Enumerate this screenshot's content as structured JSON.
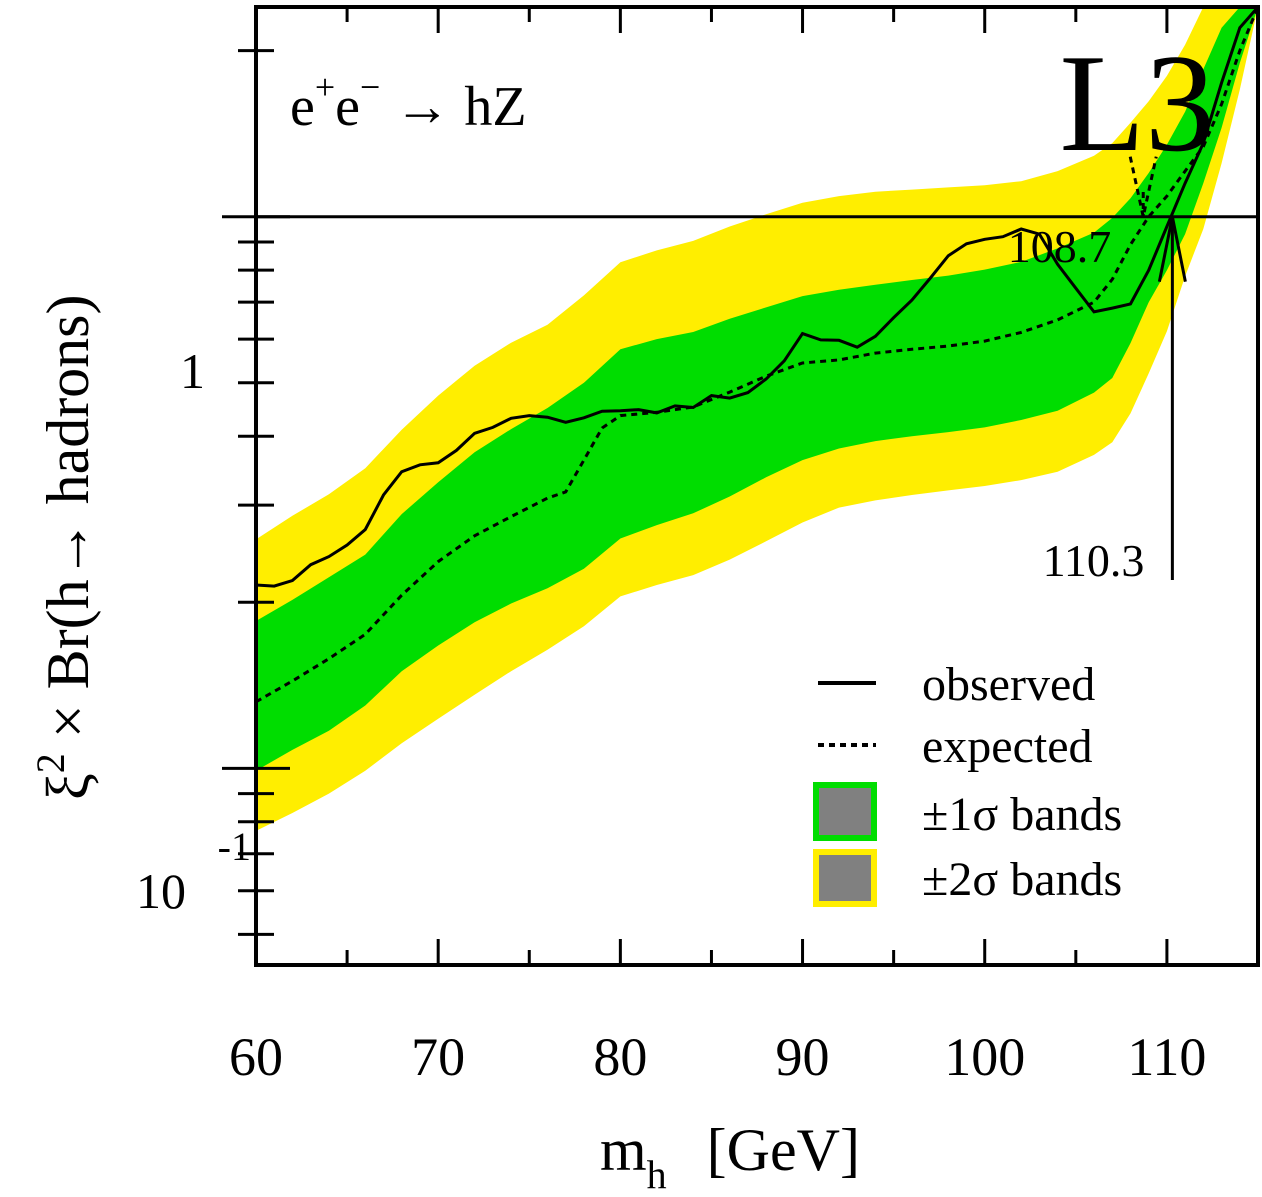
{
  "chart_data": {
    "type": "line",
    "experiment_label": "L3",
    "process_label": {
      "base": "e",
      "sup1": "+",
      "mid": "e",
      "sup2": "−",
      "tail": " → hZ"
    },
    "xlabel": {
      "main": "m",
      "sub": "h",
      "unit": "[GeV]"
    },
    "ylabel": {
      "xi": "ξ",
      "sup": "2",
      "rest": " × Br(h→ hadrons)"
    },
    "xlim": [
      60,
      115
    ],
    "ylim": [
      0.044,
      2.4
    ],
    "yscale": "log",
    "x_ticks": [
      60,
      70,
      80,
      90,
      100,
      110
    ],
    "y_tick_labels": [
      {
        "value": 1,
        "text": "1"
      },
      {
        "value": 0.1,
        "base": "10",
        "exponent": "-1"
      }
    ],
    "reference_line": 1,
    "colors": {
      "band_1sigma": "#00dd00",
      "band_2sigma": "#ffee00",
      "line": "#000000",
      "legend_fill": "#808080"
    },
    "legend": {
      "position": "bottom-right",
      "items": [
        {
          "style": "solid",
          "label": "observed"
        },
        {
          "style": "dotted",
          "label": "expected"
        },
        {
          "style": "box-green",
          "label": "±1σ bands"
        },
        {
          "style": "box-yellow",
          "label": "±2σ bands"
        }
      ]
    },
    "annotations": [
      {
        "text": "108.7",
        "x": 108.7,
        "style": "dotted-arrow"
      },
      {
        "text": "110.3",
        "x": 110.3,
        "style": "solid-arrow"
      }
    ],
    "series": [
      {
        "name": "observed",
        "style": "solid",
        "x": [
          60,
          61,
          62,
          63,
          64,
          65,
          66,
          67,
          68,
          69,
          70,
          71,
          72,
          73,
          74,
          75,
          76,
          77,
          78,
          79,
          80,
          81,
          82,
          83,
          84,
          85,
          86,
          87,
          88,
          89,
          90,
          91,
          92,
          93,
          94,
          95,
          96,
          97,
          98,
          99,
          100,
          101,
          102,
          103,
          104,
          105,
          106,
          107,
          108,
          109,
          110,
          111,
          112,
          113,
          114,
          115
        ],
        "y": [
          0.215,
          0.214,
          0.219,
          0.234,
          0.242,
          0.254,
          0.271,
          0.313,
          0.345,
          0.355,
          0.358,
          0.377,
          0.405,
          0.415,
          0.431,
          0.436,
          0.433,
          0.424,
          0.432,
          0.444,
          0.445,
          0.447,
          0.441,
          0.454,
          0.451,
          0.474,
          0.469,
          0.48,
          0.508,
          0.548,
          0.614,
          0.598,
          0.597,
          0.58,
          0.607,
          0.656,
          0.706,
          0.773,
          0.85,
          0.893,
          0.91,
          0.92,
          0.95,
          0.93,
          0.82,
          0.742,
          0.672,
          0.683,
          0.695,
          0.8,
          0.96,
          1.15,
          1.36,
          1.75,
          2.2,
          2.4
        ]
      },
      {
        "name": "expected",
        "style": "dotted",
        "x": [
          60,
          62,
          64,
          66,
          68,
          70,
          72,
          74,
          76,
          77,
          78,
          79,
          80,
          82,
          84,
          86,
          88,
          90,
          92,
          94,
          96,
          98,
          100,
          102,
          104,
          106,
          107,
          108,
          109,
          110,
          111,
          112,
          113,
          114,
          115
        ],
        "y": [
          0.132,
          0.144,
          0.158,
          0.175,
          0.206,
          0.237,
          0.264,
          0.286,
          0.309,
          0.317,
          0.362,
          0.414,
          0.436,
          0.442,
          0.452,
          0.481,
          0.514,
          0.543,
          0.55,
          0.566,
          0.575,
          0.583,
          0.595,
          0.617,
          0.65,
          0.7,
          0.77,
          0.89,
          1.0,
          1.09,
          1.21,
          1.34,
          1.6,
          2.0,
          2.4
        ]
      },
      {
        "name": "±1σ bands",
        "style": "band",
        "x": [
          60,
          62,
          64,
          66,
          68,
          70,
          72,
          74,
          76,
          78,
          80,
          82,
          84,
          86,
          88,
          90,
          92,
          94,
          96,
          98,
          100,
          102,
          104,
          106,
          107,
          108,
          109,
          110,
          111,
          112,
          113,
          114,
          115
        ],
        "lower": [
          0.099,
          0.108,
          0.117,
          0.13,
          0.15,
          0.167,
          0.184,
          0.199,
          0.212,
          0.23,
          0.261,
          0.276,
          0.29,
          0.311,
          0.337,
          0.362,
          0.38,
          0.392,
          0.4,
          0.407,
          0.415,
          0.428,
          0.445,
          0.48,
          0.51,
          0.59,
          0.7,
          0.8,
          0.93,
          1.15,
          1.45,
          1.9,
          2.4
        ],
        "upper": [
          0.185,
          0.202,
          0.222,
          0.244,
          0.289,
          0.33,
          0.374,
          0.412,
          0.45,
          0.5,
          0.575,
          0.6,
          0.618,
          0.653,
          0.685,
          0.718,
          0.737,
          0.753,
          0.768,
          0.782,
          0.802,
          0.828,
          0.876,
          0.936,
          0.995,
          1.08,
          1.2,
          1.35,
          1.55,
          1.85,
          2.2,
          2.4,
          2.4
        ]
      },
      {
        "name": "±2σ bands",
        "style": "band",
        "x": [
          60,
          62,
          64,
          66,
          68,
          70,
          72,
          74,
          76,
          78,
          80,
          82,
          84,
          86,
          88,
          90,
          92,
          94,
          96,
          98,
          100,
          102,
          104,
          106,
          107,
          108,
          109,
          110,
          111,
          112,
          113,
          114,
          115
        ],
        "lower": [
          0.077,
          0.083,
          0.09,
          0.099,
          0.111,
          0.123,
          0.136,
          0.15,
          0.164,
          0.181,
          0.205,
          0.215,
          0.224,
          0.239,
          0.258,
          0.279,
          0.297,
          0.306,
          0.313,
          0.319,
          0.325,
          0.333,
          0.345,
          0.37,
          0.39,
          0.44,
          0.52,
          0.62,
          0.78,
          0.95,
          1.25,
          1.7,
          2.4
        ],
        "upper": [
          0.26,
          0.287,
          0.314,
          0.35,
          0.411,
          0.474,
          0.537,
          0.591,
          0.637,
          0.72,
          0.827,
          0.869,
          0.904,
          0.96,
          1.01,
          1.06,
          1.09,
          1.11,
          1.12,
          1.13,
          1.14,
          1.16,
          1.21,
          1.29,
          1.36,
          1.48,
          1.62,
          1.8,
          2.05,
          2.4,
          2.4,
          2.4,
          2.4
        ]
      }
    ]
  }
}
